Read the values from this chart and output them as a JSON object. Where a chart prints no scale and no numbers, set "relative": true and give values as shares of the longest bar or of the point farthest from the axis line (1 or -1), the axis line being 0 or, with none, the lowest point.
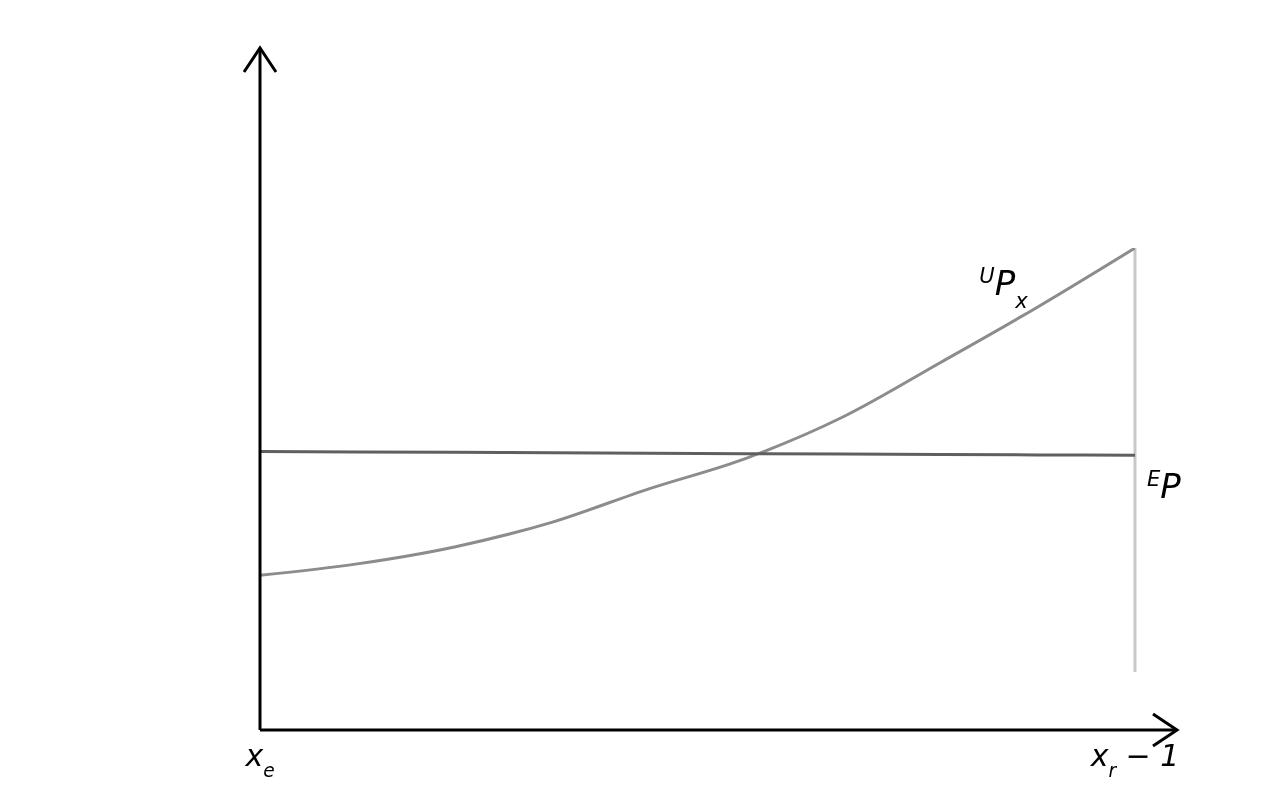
{
  "chart_data": {
    "type": "line",
    "relative": true,
    "categories": [
      "x$_{e}$",
      null,
      null,
      null,
      null,
      null,
      null,
      null,
      null,
      "x$_{r}$ − 1"
    ],
    "series": [
      {
        "name": "$^{U}$P$_{x}$",
        "color": "#8c8c8c",
        "values": [
          0.228,
          0.255,
          0.295,
          0.353,
          0.432,
          0.504,
          0.602,
          0.73,
          0.861,
          1
        ]
      },
      {
        "name": "$^{E}$P",
        "color": "#5f5f5f",
        "values": [
          0.52,
          0.519,
          0.518,
          0.517,
          0.516,
          0.515,
          0.514,
          0.513,
          0.512,
          0.511
        ]
      }
    ],
    "ref_lines": [
      {
        "axis": "x",
        "value": "x$_{r}$ − 1",
        "color": "#c8c8c8"
      }
    ],
    "grid": false,
    "legend": false,
    "marker": "none",
    "line_style": "solid"
  }
}
